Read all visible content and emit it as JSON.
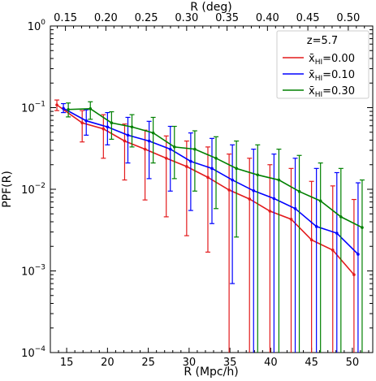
{
  "chart_data": {
    "type": "line",
    "title": "",
    "xlabel": "R (Mpc/h)",
    "ylabel": "PPF(R)",
    "top_xlabel": "R (deg)",
    "xlim": [
      13,
      52.5
    ],
    "ylim": [
      0.0001,
      1
    ],
    "yscale": "log",
    "x_ticks": [
      15,
      20,
      25,
      30,
      35,
      40,
      45,
      50
    ],
    "x_tick_labels": [
      "15",
      "20",
      "25",
      "30",
      "35",
      "40",
      "45",
      "50"
    ],
    "y_ticks": [
      0.0001,
      0.001,
      0.01,
      0.1,
      1
    ],
    "y_tick_labels": [
      {
        "base": "10",
        "exp": "−4"
      },
      {
        "base": "10",
        "exp": "−3"
      },
      {
        "base": "10",
        "exp": "−2"
      },
      {
        "base": "10",
        "exp": "−1"
      },
      {
        "base": "10",
        "exp": "0"
      }
    ],
    "top_ticks": [
      0.15,
      0.2,
      0.25,
      0.3,
      0.35,
      0.4,
      0.45,
      0.5
    ],
    "top_tick_labels": [
      "0.15",
      "0.20",
      "0.25",
      "0.30",
      "0.35",
      "0.40",
      "0.45",
      "0.50"
    ],
    "legend": {
      "title": "z=5.7",
      "placement": "top-right"
    },
    "series": [
      {
        "name": "x̄HI=0.00",
        "label_main": "x̄",
        "label_sub": "HI",
        "label_rest": "=0.00",
        "color": "#e31a1c",
        "x": [
          13.8,
          16.9,
          19.5,
          22.1,
          24.6,
          27.2,
          29.7,
          32.3,
          34.9,
          37.4,
          39.9,
          42.5,
          45.0,
          47.6,
          50.2
        ],
        "y": [
          0.108,
          0.065,
          0.055,
          0.039,
          0.031,
          0.024,
          0.019,
          0.014,
          0.0098,
          0.0076,
          0.0054,
          0.0043,
          0.0024,
          0.0018,
          0.0009
        ],
        "err_low": [
          0.092,
          0.038,
          0.024,
          0.013,
          0.0074,
          0.0046,
          0.0027,
          0.0017,
          0.0001,
          0.0001,
          0.0001,
          0.0001,
          0.0001,
          0.0001,
          0.0001
        ],
        "err_high": [
          0.124,
          0.092,
          0.082,
          0.063,
          0.053,
          0.045,
          0.039,
          0.033,
          0.027,
          0.024,
          0.02,
          0.018,
          0.0125,
          0.011,
          0.0075
        ]
      },
      {
        "name": "x̄HI=0.10",
        "label_main": "x̄",
        "label_sub": "HI",
        "label_rest": "=0.10",
        "color": "#0000ff",
        "x": [
          14.6,
          17.4,
          20.0,
          22.5,
          25.1,
          27.7,
          30.2,
          32.8,
          35.3,
          37.9,
          40.4,
          43.0,
          45.6,
          48.1,
          50.7
        ],
        "y": [
          0.098,
          0.069,
          0.058,
          0.046,
          0.039,
          0.031,
          0.022,
          0.018,
          0.013,
          0.0096,
          0.0077,
          0.0058,
          0.0035,
          0.0029,
          0.0016
        ],
        "err_low": [
          0.087,
          0.046,
          0.035,
          0.021,
          0.0135,
          0.0095,
          0.0055,
          0.0038,
          0.0007,
          0.0001,
          0.0001,
          0.0001,
          0.0001,
          0.0001,
          0.0001
        ],
        "err_high": [
          0.112,
          0.094,
          0.087,
          0.076,
          0.068,
          0.059,
          0.049,
          0.042,
          0.035,
          0.031,
          0.027,
          0.024,
          0.018,
          0.016,
          0.012
        ]
      },
      {
        "name": "x̄HI=0.30",
        "label_main": "x̄",
        "label_sub": "HI",
        "label_rest": "=0.30",
        "color": "#008000",
        "x": [
          15.2,
          17.9,
          20.5,
          23.0,
          25.6,
          28.2,
          30.7,
          33.3,
          35.8,
          38.4,
          41.0,
          43.5,
          46.1,
          48.6,
          51.2
        ],
        "y": [
          0.095,
          0.097,
          0.065,
          0.058,
          0.049,
          0.033,
          0.031,
          0.024,
          0.018,
          0.015,
          0.013,
          0.0094,
          0.0072,
          0.0046,
          0.0034
        ],
        "err_low": [
          0.077,
          0.072,
          0.041,
          0.033,
          0.021,
          0.0135,
          0.0095,
          0.0058,
          0.0026,
          0.0001,
          0.0001,
          0.0001,
          0.0001,
          0.0001,
          0.0001
        ],
        "err_high": [
          0.114,
          0.118,
          0.089,
          0.082,
          0.076,
          0.059,
          0.052,
          0.044,
          0.039,
          0.035,
          0.031,
          0.026,
          0.021,
          0.018,
          0.013
        ]
      }
    ],
    "grid": false
  }
}
